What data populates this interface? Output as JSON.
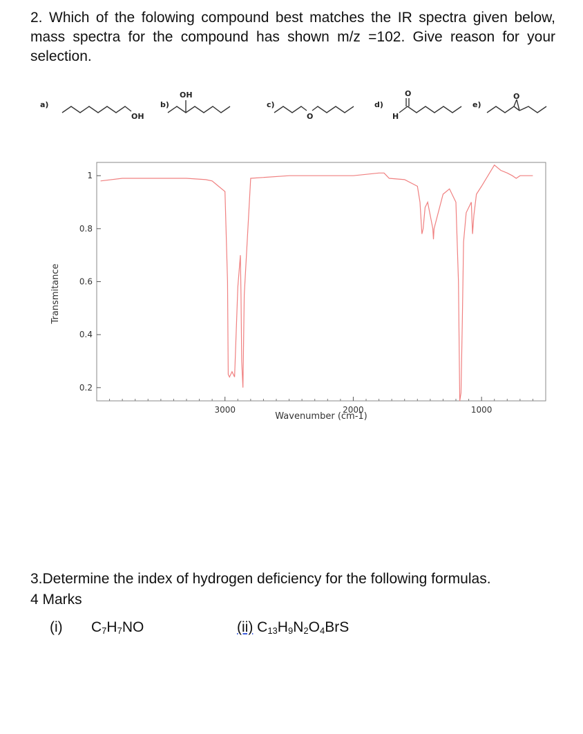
{
  "question2": {
    "text": "2.  Which of the folowing compound best matches the IR spectra given below, mass spectra for the compound has shown m/z =102. Give reason for your selection."
  },
  "options": [
    {
      "label": "a)",
      "group": "OH"
    },
    {
      "label": "b)",
      "group": "OH"
    },
    {
      "label": "c)",
      "group": "O"
    },
    {
      "label": "d)",
      "group": "O",
      "group2": "H"
    },
    {
      "label": "e)",
      "group": "O"
    }
  ],
  "chart_data": {
    "type": "line",
    "title": "",
    "xlabel": "Wavenumber (cm-1)",
    "ylabel": "Transmitance",
    "x_reversed": true,
    "xlim": [
      4000,
      500
    ],
    "ylim": [
      0.15,
      1.05
    ],
    "x_ticks": [
      3000,
      2000,
      1000
    ],
    "x_tick_labels": [
      "3000",
      "2000",
      "1000"
    ],
    "y_ticks": [
      0.2,
      0.4,
      0.6,
      0.8,
      1
    ],
    "y_tick_labels": [
      "0.2",
      "0.4",
      "0.6",
      "0.8",
      "1"
    ],
    "line_color": "#f08080",
    "grid": false,
    "series": [
      {
        "x": [
          3970,
          3800,
          3500,
          3300,
          3150,
          3100,
          3050,
          3000,
          2980,
          2975,
          2965,
          2945,
          2935,
          2925,
          2900,
          2880,
          2875,
          2870,
          2860,
          2850,
          2800,
          2500,
          2200,
          2000,
          1800,
          1760,
          1740,
          1720,
          1600,
          1500,
          1480,
          1465,
          1455,
          1440,
          1420,
          1380,
          1375,
          1370,
          1300,
          1250,
          1200,
          1180,
          1170,
          1160,
          1150,
          1140,
          1120,
          1080,
          1070,
          1060,
          1040,
          1000,
          950,
          900,
          850,
          800,
          760,
          730,
          700,
          650,
          600
        ],
        "y": [
          0.98,
          0.99,
          0.99,
          0.99,
          0.985,
          0.98,
          0.96,
          0.94,
          0.6,
          0.25,
          0.24,
          0.26,
          0.25,
          0.24,
          0.58,
          0.7,
          0.55,
          0.3,
          0.2,
          0.55,
          0.99,
          1.0,
          1.0,
          1.0,
          1.01,
          1.01,
          1.0,
          0.99,
          0.985,
          0.96,
          0.9,
          0.78,
          0.8,
          0.88,
          0.9,
          0.8,
          0.76,
          0.8,
          0.93,
          0.95,
          0.9,
          0.6,
          0.15,
          0.18,
          0.45,
          0.75,
          0.86,
          0.9,
          0.78,
          0.85,
          0.93,
          0.96,
          1.0,
          1.04,
          1.02,
          1.01,
          1.0,
          0.99,
          1.0,
          1.0,
          1.0
        ]
      }
    ]
  },
  "question3": {
    "text": "3.Determine the index of hydrogen deficiency for the following formulas.",
    "marks": "4 Marks"
  },
  "formulas": {
    "f1_num": "(i)",
    "f2_num": "(ii)"
  }
}
